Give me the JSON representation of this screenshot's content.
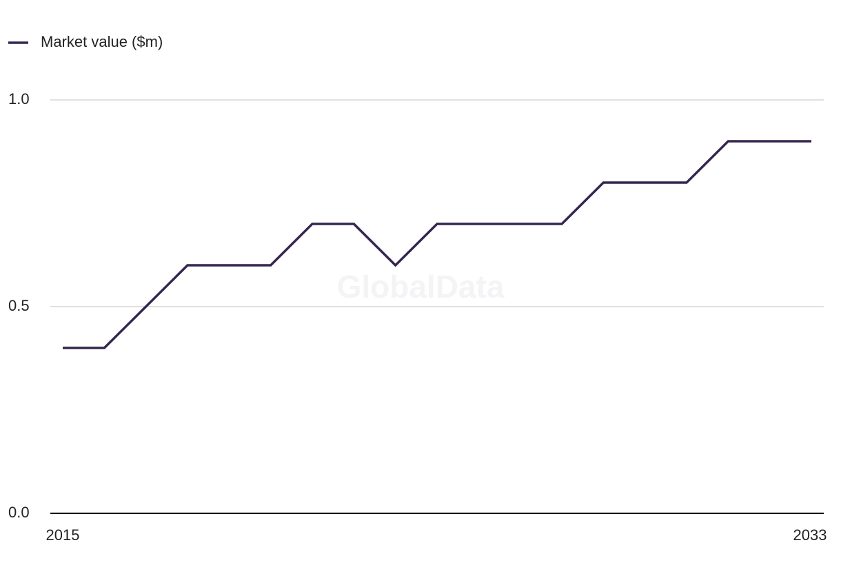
{
  "chart_data": {
    "type": "line",
    "watermark": "GlobalData",
    "x": [
      2015,
      2016,
      2017,
      2018,
      2019,
      2020,
      2021,
      2022,
      2023,
      2024,
      2025,
      2026,
      2027,
      2028,
      2029,
      2030,
      2031,
      2032,
      2033
    ],
    "series": [
      {
        "name": "Market value ($m)",
        "color": "#35264f",
        "values": [
          0.4,
          0.4,
          0.5,
          0.6,
          0.6,
          0.6,
          0.7,
          0.7,
          0.6,
          0.7,
          0.7,
          0.7,
          0.7,
          0.8,
          0.8,
          0.8,
          0.9,
          0.9,
          0.9
        ]
      }
    ],
    "xlim": [
      2015,
      2033
    ],
    "xticks": [
      2015,
      2033
    ],
    "ylim": [
      0,
      1
    ],
    "yticks": [
      {
        "value": 0,
        "label": "0.0"
      },
      {
        "value": 0.5,
        "label": "0.5"
      },
      {
        "value": 1,
        "label": "1.0"
      }
    ],
    "grid": true,
    "legend": "top-left"
  }
}
